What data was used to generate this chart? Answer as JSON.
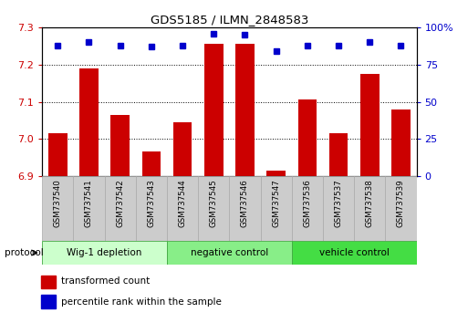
{
  "title": "GDS5185 / ILMN_2848583",
  "samples": [
    "GSM737540",
    "GSM737541",
    "GSM737542",
    "GSM737543",
    "GSM737544",
    "GSM737545",
    "GSM737546",
    "GSM737547",
    "GSM737536",
    "GSM737537",
    "GSM737538",
    "GSM737539"
  ],
  "red_values": [
    7.015,
    7.19,
    7.065,
    6.965,
    7.045,
    7.255,
    7.255,
    6.915,
    7.105,
    7.015,
    7.175,
    7.08
  ],
  "blue_values": [
    88,
    90,
    88,
    87,
    88,
    96,
    95,
    84,
    88,
    88,
    90,
    88
  ],
  "ylim_left": [
    6.9,
    7.3
  ],
  "ylim_right": [
    0,
    100
  ],
  "yticks_left": [
    6.9,
    7.0,
    7.1,
    7.2,
    7.3
  ],
  "yticks_right": [
    0,
    25,
    50,
    75,
    100
  ],
  "groups": [
    {
      "label": "Wig-1 depletion",
      "start": 0,
      "end": 4,
      "color": "#ccffcc"
    },
    {
      "label": "negative control",
      "start": 4,
      "end": 8,
      "color": "#88ee88"
    },
    {
      "label": "vehicle control",
      "start": 8,
      "end": 12,
      "color": "#44dd44"
    }
  ],
  "red_color": "#cc0000",
  "blue_color": "#0000cc",
  "bar_width": 0.6,
  "legend_label_red": "transformed count",
  "legend_label_blue": "percentile rank within the sample",
  "protocol_label": "protocol",
  "grid_color": "#000000",
  "sample_bg_color": "#cccccc",
  "sample_border_color": "#aaaaaa",
  "fig_width": 5.13,
  "fig_height": 3.54,
  "dpi": 100
}
